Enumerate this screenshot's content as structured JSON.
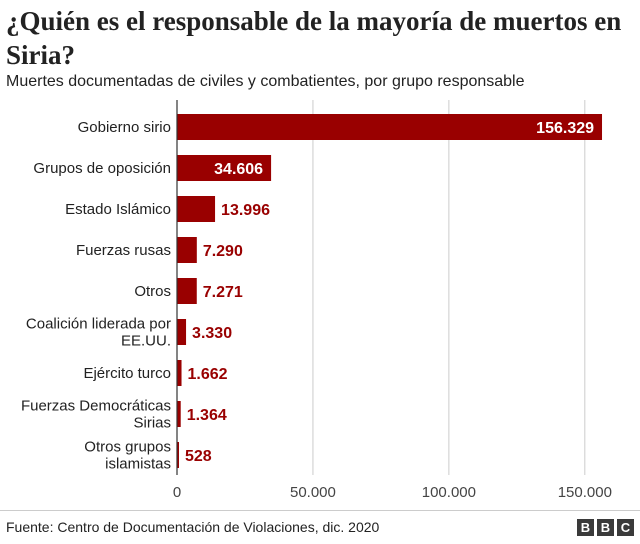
{
  "header": {
    "title": "¿Quién es el responsable de la mayoría de muertos en Siria?",
    "subtitle": "Muertes documentadas de civiles y combatientes, por grupo responsable"
  },
  "footer": {
    "source": "Fuente: Centro de Documentación de Violaciones, dic. 2020",
    "logo": [
      "B",
      "B",
      "C"
    ]
  },
  "colors": {
    "bar": "#990000",
    "bar_label_outside": "#990000",
    "bar_label_inside": "#ffffff",
    "grid": "#cccccc",
    "axis": "#333333"
  },
  "chart_data": {
    "type": "bar",
    "orientation": "horizontal",
    "categories": [
      [
        "Gobierno sirio"
      ],
      [
        "Grupos de oposición"
      ],
      [
        "Estado Islámico"
      ],
      [
        "Fuerzas rusas"
      ],
      [
        "Otros"
      ],
      [
        "Coalición liderada por",
        "EE.UU."
      ],
      [
        "Ejército turco"
      ],
      [
        "Fuerzas Democráticas",
        "Sirias"
      ],
      [
        "Otros grupos",
        "islamistas"
      ]
    ],
    "values": [
      156329,
      34606,
      13996,
      7290,
      7271,
      3330,
      1662,
      1364,
      528
    ],
    "value_labels": [
      "156.329",
      "34.606",
      "13.996",
      "7.290",
      "7.271",
      "3.330",
      "1.662",
      "1.364",
      "528"
    ],
    "xlim": [
      0,
      160000
    ],
    "xticks": [
      0,
      50000,
      100000,
      150000
    ],
    "xtick_labels": [
      "0",
      "50.000",
      "100.000",
      "150.000"
    ],
    "grid": true
  }
}
